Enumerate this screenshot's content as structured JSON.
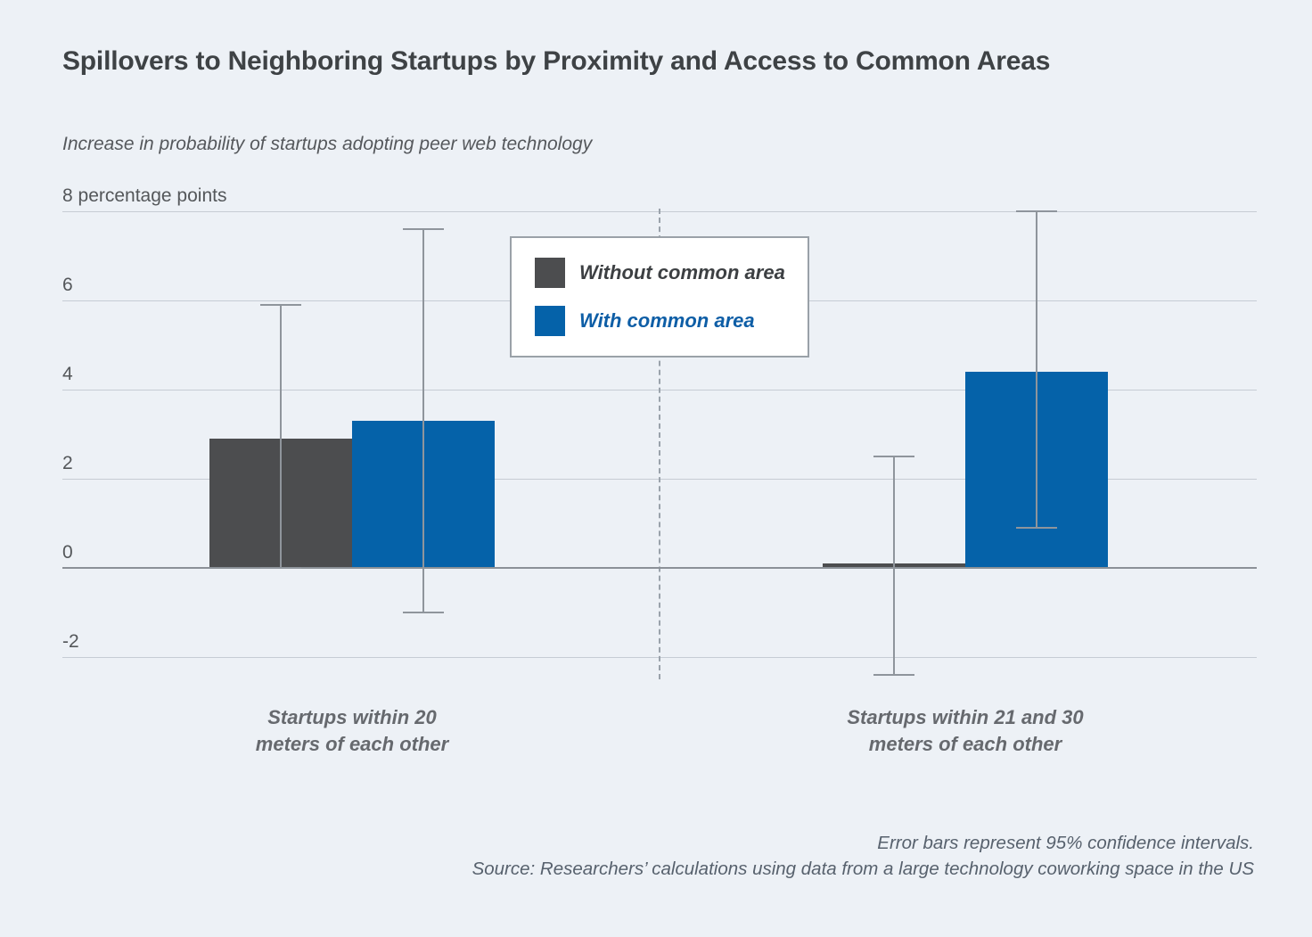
{
  "chart_data": {
    "type": "bar",
    "title": "Spillovers to Neighboring Startups by Proximity and Access to Common Areas",
    "subtitle": "Increase in probability of startups adopting peer web technology",
    "categories": [
      "Startups within 20\nmeters of each other",
      "Startups within 21 and 30\nmeters of each other"
    ],
    "series": [
      {
        "name": "Without common area",
        "color": "#4c4d4f",
        "values": [
          2.9,
          0.1
        ],
        "ci_low": [
          0.0,
          -2.4
        ],
        "ci_high": [
          5.9,
          2.5
        ]
      },
      {
        "name": "With common area",
        "color": "#0562a9",
        "values": [
          3.3,
          4.4
        ],
        "ci_low": [
          -1.0,
          0.9
        ],
        "ci_high": [
          7.6,
          8.0
        ]
      }
    ],
    "y_axis": {
      "ticks": [
        8,
        6,
        4,
        2,
        0,
        -2
      ],
      "tick_labels": [
        "8 percentage points",
        "6",
        "4",
        "2",
        "0",
        "-2"
      ],
      "ylim": [
        -2.9,
        8.1
      ],
      "grid": true
    },
    "legend_position": "top-center",
    "error_bars": "95% confidence intervals",
    "notes": [
      "Error bars represent 95% confidence intervals.",
      "Source: Researchers’ calculations using data from a large technology coworking space in the US"
    ]
  },
  "colors": {
    "background": "#edf1f6",
    "bar_gray": "#4c4d4f",
    "bar_blue": "#0562a9",
    "gridline": "#c6ccd4",
    "zero_axis": "#8b9198",
    "error_bar": "#8f959c",
    "divider": "#9aa2ab",
    "title_text": "#3e4245",
    "muted_text": "#55585c",
    "category_text": "#66696e",
    "note_text": "#57616d"
  }
}
